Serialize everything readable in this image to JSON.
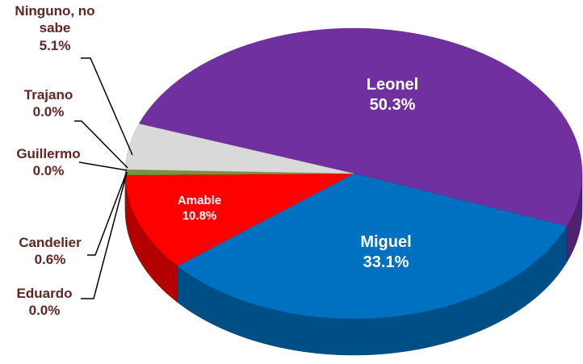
{
  "chart_data": {
    "type": "pie",
    "categories": [
      "Leonel",
      "Miguel",
      "Amable",
      "Eduardo",
      "Candelier",
      "Guillermo",
      "Trajano",
      "Ninguno, no sabe"
    ],
    "values": [
      50.3,
      33.1,
      10.8,
      0.0,
      0.6,
      0.0,
      0.0,
      5.1
    ],
    "value_labels": [
      "50.3%",
      "33.1%",
      "10.8%",
      "0.0%",
      "0.6%",
      "0.0%",
      "0.0%",
      "5.1%"
    ],
    "colors": [
      "#7030a0",
      "#0070c0",
      "#ff0000",
      "#9bbb59",
      "#77933c",
      "#9bbb59",
      "#9bbb59",
      "#d9d9d9"
    ]
  }
}
